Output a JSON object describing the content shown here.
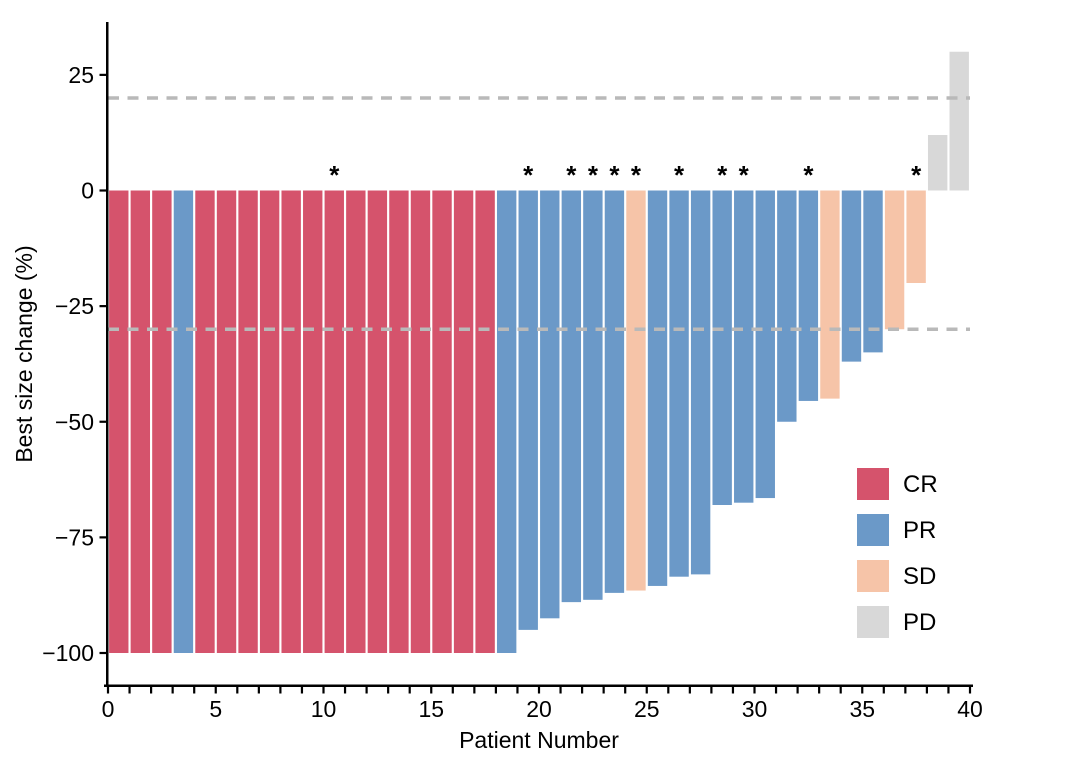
{
  "figure": {
    "background": "#ffffff"
  },
  "chart_data": {
    "type": "bar",
    "subtype": "waterfall-tumor-response",
    "title": "",
    "xlabel": "Patient Number",
    "ylabel": "Best size change (%)",
    "xlim": [
      0,
      40
    ],
    "ylim": [
      -107,
      36
    ],
    "x_tick_every": 1,
    "x_tick_labels": [
      0,
      5,
      10,
      15,
      20,
      25,
      30,
      35,
      40
    ],
    "y_tick_labels": [
      25,
      0,
      -25,
      -50,
      -75,
      -100
    ],
    "grid": "off",
    "reference_lines": {
      "style": "dashed",
      "color": "#b9b9b9",
      "values": [
        20,
        -30
      ]
    },
    "patients": [
      {
        "patient": 1,
        "value": -100,
        "response": "CR",
        "asterisk": false
      },
      {
        "patient": 2,
        "value": -100,
        "response": "CR",
        "asterisk": false
      },
      {
        "patient": 3,
        "value": -100,
        "response": "CR",
        "asterisk": false
      },
      {
        "patient": 4,
        "value": -100,
        "response": "PR",
        "asterisk": false
      },
      {
        "patient": 5,
        "value": -100,
        "response": "CR",
        "asterisk": false
      },
      {
        "patient": 6,
        "value": -100,
        "response": "CR",
        "asterisk": false
      },
      {
        "patient": 7,
        "value": -100,
        "response": "CR",
        "asterisk": false
      },
      {
        "patient": 8,
        "value": -100,
        "response": "CR",
        "asterisk": false
      },
      {
        "patient": 9,
        "value": -100,
        "response": "CR",
        "asterisk": false
      },
      {
        "patient": 10,
        "value": -100,
        "response": "CR",
        "asterisk": false
      },
      {
        "patient": 11,
        "value": -100,
        "response": "CR",
        "asterisk": true
      },
      {
        "patient": 12,
        "value": -100,
        "response": "CR",
        "asterisk": false
      },
      {
        "patient": 13,
        "value": -100,
        "response": "CR",
        "asterisk": false
      },
      {
        "patient": 14,
        "value": -100,
        "response": "CR",
        "asterisk": false
      },
      {
        "patient": 15,
        "value": -100,
        "response": "CR",
        "asterisk": false
      },
      {
        "patient": 16,
        "value": -100,
        "response": "CR",
        "asterisk": false
      },
      {
        "patient": 17,
        "value": -100,
        "response": "CR",
        "asterisk": false
      },
      {
        "patient": 18,
        "value": -100,
        "response": "CR",
        "asterisk": false
      },
      {
        "patient": 19,
        "value": -100,
        "response": "PR",
        "asterisk": false
      },
      {
        "patient": 20,
        "value": -95,
        "response": "PR",
        "asterisk": true
      },
      {
        "patient": 21,
        "value": -92.5,
        "response": "PR",
        "asterisk": false
      },
      {
        "patient": 22,
        "value": -89,
        "response": "PR",
        "asterisk": true
      },
      {
        "patient": 23,
        "value": -88.5,
        "response": "PR",
        "asterisk": true
      },
      {
        "patient": 24,
        "value": -87,
        "response": "PR",
        "asterisk": true
      },
      {
        "patient": 25,
        "value": -86.5,
        "response": "SD",
        "asterisk": true
      },
      {
        "patient": 26,
        "value": -85.5,
        "response": "PR",
        "asterisk": false
      },
      {
        "patient": 27,
        "value": -83.5,
        "response": "PR",
        "asterisk": true
      },
      {
        "patient": 28,
        "value": -83,
        "response": "PR",
        "asterisk": false
      },
      {
        "patient": 29,
        "value": -68,
        "response": "PR",
        "asterisk": true
      },
      {
        "patient": 30,
        "value": -67.5,
        "response": "PR",
        "asterisk": true
      },
      {
        "patient": 31,
        "value": -66.5,
        "response": "PR",
        "asterisk": false
      },
      {
        "patient": 32,
        "value": -50,
        "response": "PR",
        "asterisk": false
      },
      {
        "patient": 33,
        "value": -45.5,
        "response": "PR",
        "asterisk": true
      },
      {
        "patient": 34,
        "value": -45,
        "response": "SD",
        "asterisk": false
      },
      {
        "patient": 35,
        "value": -37,
        "response": "PR",
        "asterisk": false
      },
      {
        "patient": 36,
        "value": -35,
        "response": "PR",
        "asterisk": false
      },
      {
        "patient": 37,
        "value": -30,
        "response": "SD",
        "asterisk": false
      },
      {
        "patient": 38,
        "value": -20,
        "response": "SD",
        "asterisk": true
      },
      {
        "patient": 39,
        "value": 12,
        "response": "PD",
        "asterisk": false
      },
      {
        "patient": 40,
        "value": 30,
        "response": "PD",
        "asterisk": false
      }
    ]
  },
  "colors": {
    "CR": "#d5536c",
    "PR": "#6b99c8",
    "SD": "#f6c4a8",
    "PD": "#d8d8d8",
    "reference_line": "#b9b9b9",
    "axis": "#000000"
  },
  "legend": {
    "entries": [
      {
        "key": "CR",
        "label": "CR"
      },
      {
        "key": "PR",
        "label": "PR"
      },
      {
        "key": "SD",
        "label": "SD"
      },
      {
        "key": "PD",
        "label": "PD"
      }
    ]
  }
}
